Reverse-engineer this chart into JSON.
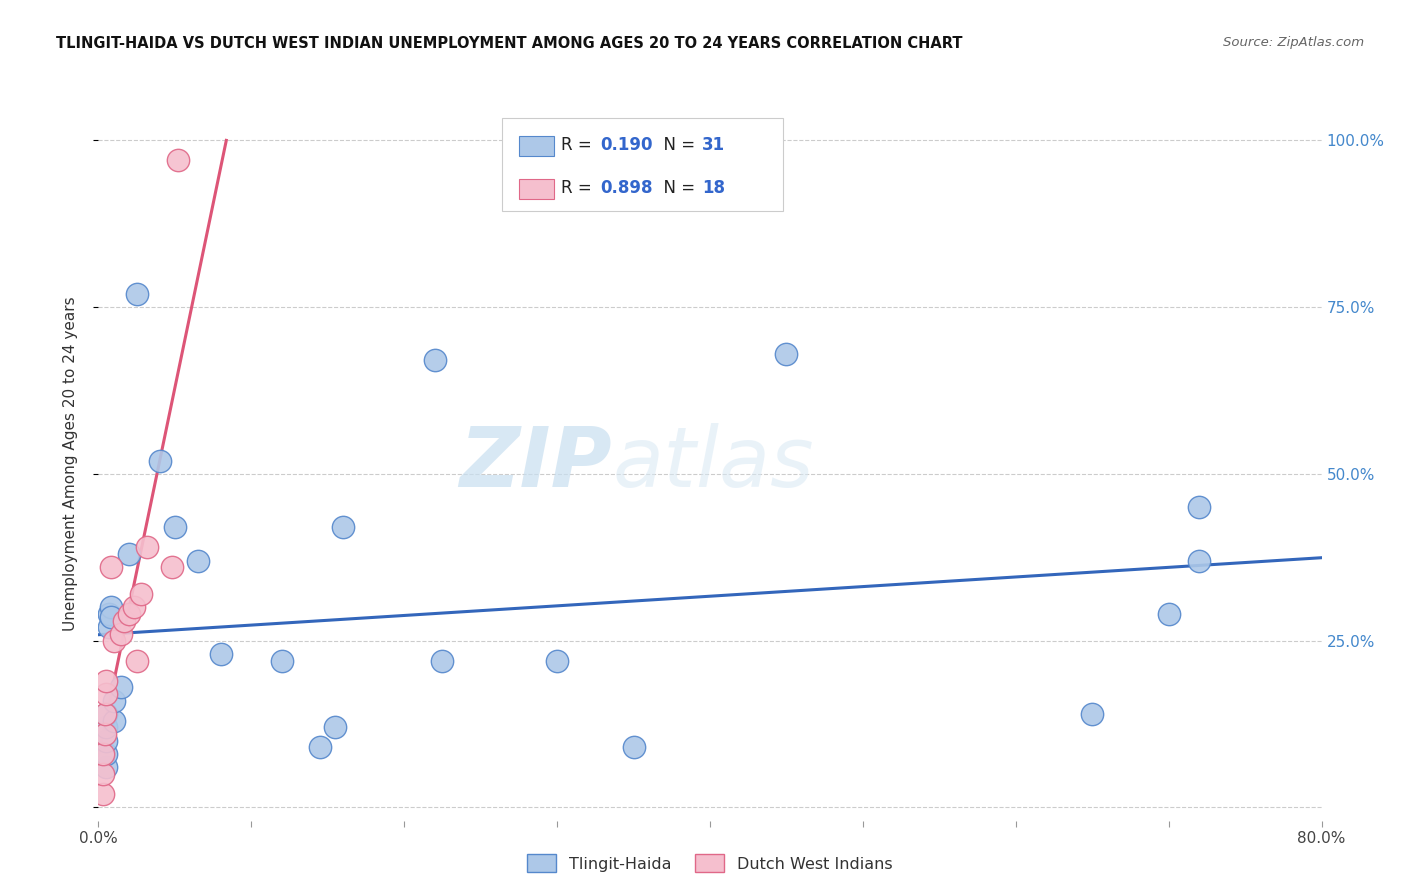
{
  "title": "TLINGIT-HAIDA VS DUTCH WEST INDIAN UNEMPLOYMENT AMONG AGES 20 TO 24 YEARS CORRELATION CHART",
  "source": "Source: ZipAtlas.com",
  "ylabel": "Unemployment Among Ages 20 to 24 years",
  "xlim": [
    0.0,
    0.8
  ],
  "ylim": [
    -0.02,
    1.05
  ],
  "xticks": [
    0.0,
    0.1,
    0.2,
    0.3,
    0.4,
    0.5,
    0.6,
    0.7,
    0.8
  ],
  "xticklabels": [
    "0.0%",
    "",
    "",
    "",
    "",
    "",
    "",
    "",
    "80.0%"
  ],
  "yticks": [
    0.0,
    0.25,
    0.5,
    0.75,
    1.0
  ],
  "yticklabels_right": [
    "",
    "25.0%",
    "50.0%",
    "75.0%",
    "100.0%"
  ],
  "blue_R": 0.19,
  "blue_N": 31,
  "pink_R": 0.898,
  "pink_N": 18,
  "blue_color": "#adc8e8",
  "blue_edge": "#5588cc",
  "pink_color": "#f5bfce",
  "pink_edge": "#e06888",
  "blue_line_color": "#3366bb",
  "pink_line_color": "#dd5577",
  "watermark_zip": "ZIP",
  "watermark_atlas": "atlas",
  "tlingit_x": [
    0.005,
    0.005,
    0.005,
    0.005,
    0.005,
    0.007,
    0.007,
    0.008,
    0.008,
    0.01,
    0.01,
    0.015,
    0.02,
    0.025,
    0.04,
    0.05,
    0.065,
    0.08,
    0.12,
    0.145,
    0.155,
    0.16,
    0.22,
    0.225,
    0.3,
    0.35,
    0.45,
    0.65,
    0.7,
    0.72,
    0.72
  ],
  "tlingit_y": [
    0.06,
    0.08,
    0.1,
    0.12,
    0.14,
    0.27,
    0.29,
    0.3,
    0.285,
    0.13,
    0.16,
    0.18,
    0.38,
    0.77,
    0.52,
    0.42,
    0.37,
    0.23,
    0.22,
    0.09,
    0.12,
    0.42,
    0.67,
    0.22,
    0.22,
    0.09,
    0.68,
    0.14,
    0.29,
    0.37,
    0.45
  ],
  "dutch_x": [
    0.003,
    0.003,
    0.003,
    0.004,
    0.004,
    0.005,
    0.005,
    0.008,
    0.01,
    0.015,
    0.017,
    0.02,
    0.023,
    0.025,
    0.028,
    0.032,
    0.048,
    0.052
  ],
  "dutch_y": [
    0.02,
    0.05,
    0.08,
    0.11,
    0.14,
    0.17,
    0.19,
    0.36,
    0.25,
    0.26,
    0.28,
    0.29,
    0.3,
    0.22,
    0.32,
    0.39,
    0.36,
    0.97
  ]
}
